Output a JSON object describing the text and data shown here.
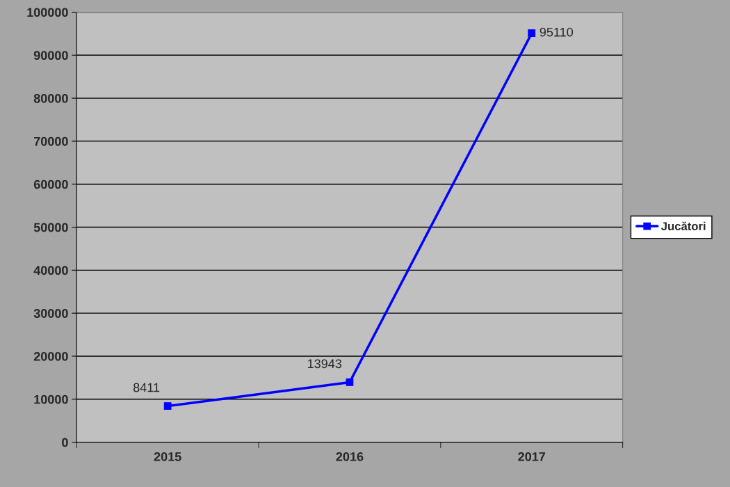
{
  "chart_data": {
    "type": "line",
    "categories": [
      "2015",
      "2016",
      "2017"
    ],
    "series": [
      {
        "name": "Jucători",
        "color": "#0000ff",
        "values": [
          8411,
          13943,
          95110
        ]
      }
    ],
    "ylim": [
      0,
      100000
    ],
    "yticks": [
      0,
      10000,
      20000,
      30000,
      40000,
      50000,
      60000,
      70000,
      80000,
      90000,
      100000
    ],
    "grid": "y",
    "legend": "right",
    "marker": "square",
    "line_style": "solid",
    "data_labels": true
  }
}
